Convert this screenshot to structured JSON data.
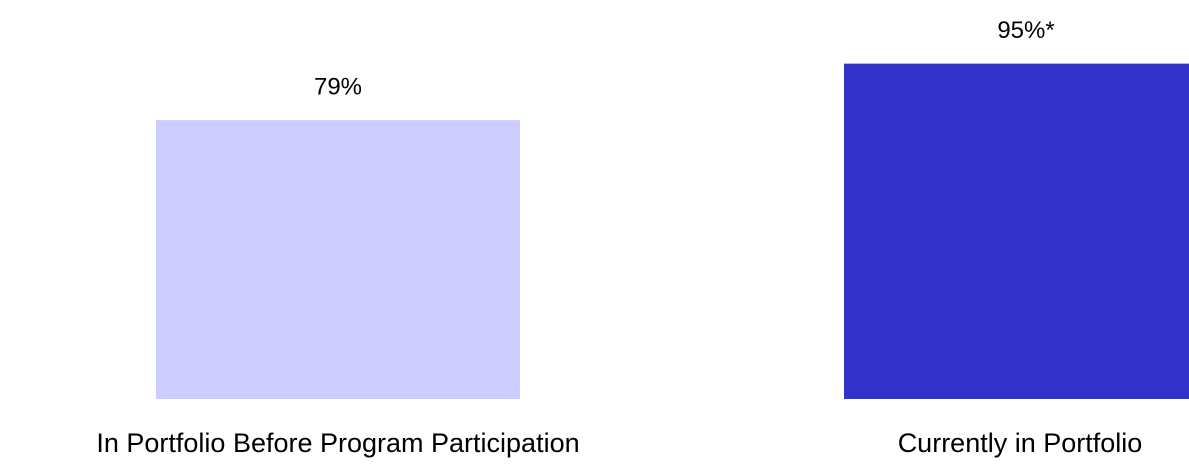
{
  "chart_data": {
    "type": "bar",
    "categories": [
      "In Portfolio Before Program Participation",
      "Currently in Portfolio"
    ],
    "values": [
      79,
      95
    ],
    "value_labels": [
      "79%",
      "95%*"
    ],
    "colors": [
      "#ccccff",
      "#3333cc"
    ],
    "ylim": [
      0,
      100
    ]
  }
}
